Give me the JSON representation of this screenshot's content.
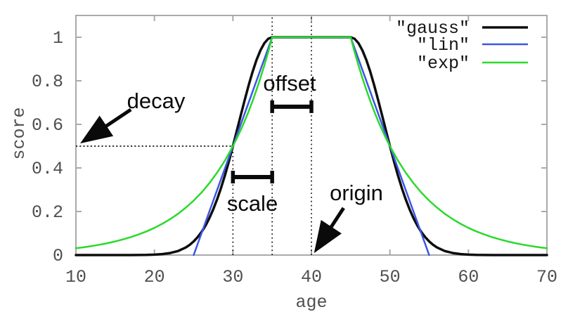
{
  "chart_data": {
    "type": "line",
    "title": "",
    "xlabel": "age",
    "ylabel": "score",
    "xlim": [
      10,
      70
    ],
    "ylim": [
      0,
      1.1
    ],
    "x_ticks": [
      "10",
      "20",
      "30",
      "40",
      "50",
      "60",
      "70"
    ],
    "y_ticks": [
      "0",
      "0.2",
      "0.4",
      "0.6",
      "0.8",
      "1"
    ],
    "grid": false,
    "legend_position": "top-right",
    "series": [
      {
        "id": "gauss",
        "label": "\"gauss\"",
        "color": "#0d0d0d",
        "width": 3.5,
        "points": [
          [
            10,
            0
          ],
          [
            16,
            0
          ],
          [
            17,
            0.0001
          ],
          [
            18,
            0.0003
          ],
          [
            19,
            0.0008
          ],
          [
            20,
            0.002
          ],
          [
            21,
            0.0044
          ],
          [
            22,
            0.0092
          ],
          [
            23,
            0.0184
          ],
          [
            24,
            0.0349
          ],
          [
            24.5,
            0.047
          ],
          [
            25,
            0.0625
          ],
          [
            25.5,
            0.0819
          ],
          [
            26,
            0.1058
          ],
          [
            26.5,
            0.1349
          ],
          [
            27,
            0.1696
          ],
          [
            27.5,
            0.2102
          ],
          [
            28,
            0.257
          ],
          [
            28.5,
            0.3099
          ],
          [
            29,
            0.3686
          ],
          [
            29.5,
            0.4323
          ],
          [
            30,
            0.5
          ],
          [
            30.5,
            0.5705
          ],
          [
            31,
            0.6417
          ],
          [
            31.5,
            0.712
          ],
          [
            32,
            0.7792
          ],
          [
            32.5,
            0.8409
          ],
          [
            33,
            0.895
          ],
          [
            33.5,
            0.9395
          ],
          [
            34,
            0.9727
          ],
          [
            34.5,
            0.9931
          ],
          [
            35,
            1
          ],
          [
            45,
            1
          ],
          [
            45.5,
            0.9931
          ],
          [
            46,
            0.9727
          ],
          [
            46.5,
            0.9395
          ],
          [
            47,
            0.895
          ],
          [
            47.5,
            0.8409
          ],
          [
            48,
            0.7792
          ],
          [
            48.5,
            0.712
          ],
          [
            49,
            0.6417
          ],
          [
            49.5,
            0.5705
          ],
          [
            50,
            0.5
          ],
          [
            50.5,
            0.4323
          ],
          [
            51,
            0.3686
          ],
          [
            51.5,
            0.3099
          ],
          [
            52,
            0.257
          ],
          [
            52.5,
            0.2102
          ],
          [
            53,
            0.1696
          ],
          [
            53.5,
            0.1349
          ],
          [
            54,
            0.1058
          ],
          [
            54.5,
            0.0819
          ],
          [
            55,
            0.0625
          ],
          [
            55.5,
            0.047
          ],
          [
            56,
            0.0349
          ],
          [
            57,
            0.0184
          ],
          [
            58,
            0.0092
          ],
          [
            59,
            0.0044
          ],
          [
            60,
            0.002
          ],
          [
            61,
            0.0008
          ],
          [
            62,
            0.0003
          ],
          [
            63,
            0.0001
          ],
          [
            64,
            0
          ],
          [
            70,
            0
          ]
        ]
      },
      {
        "id": "lin",
        "label": "\"lin\"",
        "color": "#3b55e6",
        "width": 2.5,
        "points": [
          [
            25,
            0
          ],
          [
            35,
            1
          ],
          [
            45,
            1
          ],
          [
            55,
            0
          ]
        ]
      },
      {
        "id": "exp",
        "label": "\"exp\"",
        "color": "#2bd92b",
        "width": 2.5,
        "points": [
          [
            10,
            0.0313
          ],
          [
            11,
            0.0359
          ],
          [
            12,
            0.0413
          ],
          [
            13,
            0.0474
          ],
          [
            14,
            0.0544
          ],
          [
            15,
            0.0625
          ],
          [
            16,
            0.0718
          ],
          [
            17,
            0.0825
          ],
          [
            18,
            0.0947
          ],
          [
            19,
            0.1088
          ],
          [
            20,
            0.125
          ],
          [
            21,
            0.1436
          ],
          [
            22,
            0.1649
          ],
          [
            23,
            0.1895
          ],
          [
            24,
            0.2176
          ],
          [
            25,
            0.25
          ],
          [
            26,
            0.2872
          ],
          [
            27,
            0.3299
          ],
          [
            28,
            0.3789
          ],
          [
            29,
            0.4353
          ],
          [
            30,
            0.5
          ],
          [
            30.5,
            0.5359
          ],
          [
            31,
            0.5743
          ],
          [
            31.5,
            0.6156
          ],
          [
            32,
            0.6598
          ],
          [
            32.5,
            0.7071
          ],
          [
            33,
            0.7579
          ],
          [
            33.5,
            0.8123
          ],
          [
            34,
            0.8706
          ],
          [
            34.5,
            0.933
          ],
          [
            35,
            1
          ],
          [
            45,
            1
          ],
          [
            45.5,
            0.933
          ],
          [
            46,
            0.8706
          ],
          [
            46.5,
            0.8123
          ],
          [
            47,
            0.7579
          ],
          [
            47.5,
            0.7071
          ],
          [
            48,
            0.6598
          ],
          [
            48.5,
            0.6156
          ],
          [
            49,
            0.5743
          ],
          [
            49.5,
            0.5359
          ],
          [
            50,
            0.5
          ],
          [
            51,
            0.4353
          ],
          [
            52,
            0.3789
          ],
          [
            53,
            0.3299
          ],
          [
            54,
            0.2872
          ],
          [
            55,
            0.25
          ],
          [
            56,
            0.2176
          ],
          [
            57,
            0.1895
          ],
          [
            58,
            0.1649
          ],
          [
            59,
            0.1436
          ],
          [
            60,
            0.125
          ],
          [
            61,
            0.1088
          ],
          [
            62,
            0.0947
          ],
          [
            63,
            0.0825
          ],
          [
            64,
            0.0718
          ],
          [
            65,
            0.0625
          ],
          [
            66,
            0.0544
          ],
          [
            67,
            0.0474
          ],
          [
            68,
            0.0413
          ],
          [
            69,
            0.0359
          ],
          [
            70,
            0.0313
          ]
        ]
      }
    ],
    "guides": [
      {
        "id": "x30",
        "type": "v",
        "x": 30,
        "y1": 0,
        "y2": 0.5
      },
      {
        "id": "x35",
        "type": "v",
        "x": 35,
        "y1": 0,
        "y2": 1.096
      },
      {
        "id": "x40",
        "type": "v",
        "x": 40,
        "y1": 0,
        "y2": 1.096
      },
      {
        "id": "decay-level",
        "type": "h",
        "y": 0.5,
        "x1": 10,
        "x2": 30
      }
    ],
    "brackets": [
      {
        "id": "offset",
        "x1": 35,
        "x2": 40,
        "y": 0.681
      },
      {
        "id": "scale",
        "x1": 30,
        "x2": 35,
        "y": 0.358
      }
    ],
    "arrows": [
      {
        "id": "decay",
        "from_x": 17.0,
        "from_y": 0.668,
        "to_x": 11.1,
        "to_y": 0.526
      },
      {
        "id": "origin",
        "from_x": 44.1,
        "from_y": 0.216,
        "to_x": 40.7,
        "to_y": 0.029
      }
    ],
    "annotations": [
      {
        "id": "decay",
        "text": "decay"
      },
      {
        "id": "offset",
        "text": "offset"
      },
      {
        "id": "scale",
        "text": "scale"
      },
      {
        "id": "origin",
        "text": "origin"
      }
    ]
  },
  "colors": {
    "frame": "#aaaaaa",
    "tick_text": "#4f4f4f",
    "guide": "#1a1a1a",
    "annotation_ink": "#0a0a0a"
  }
}
